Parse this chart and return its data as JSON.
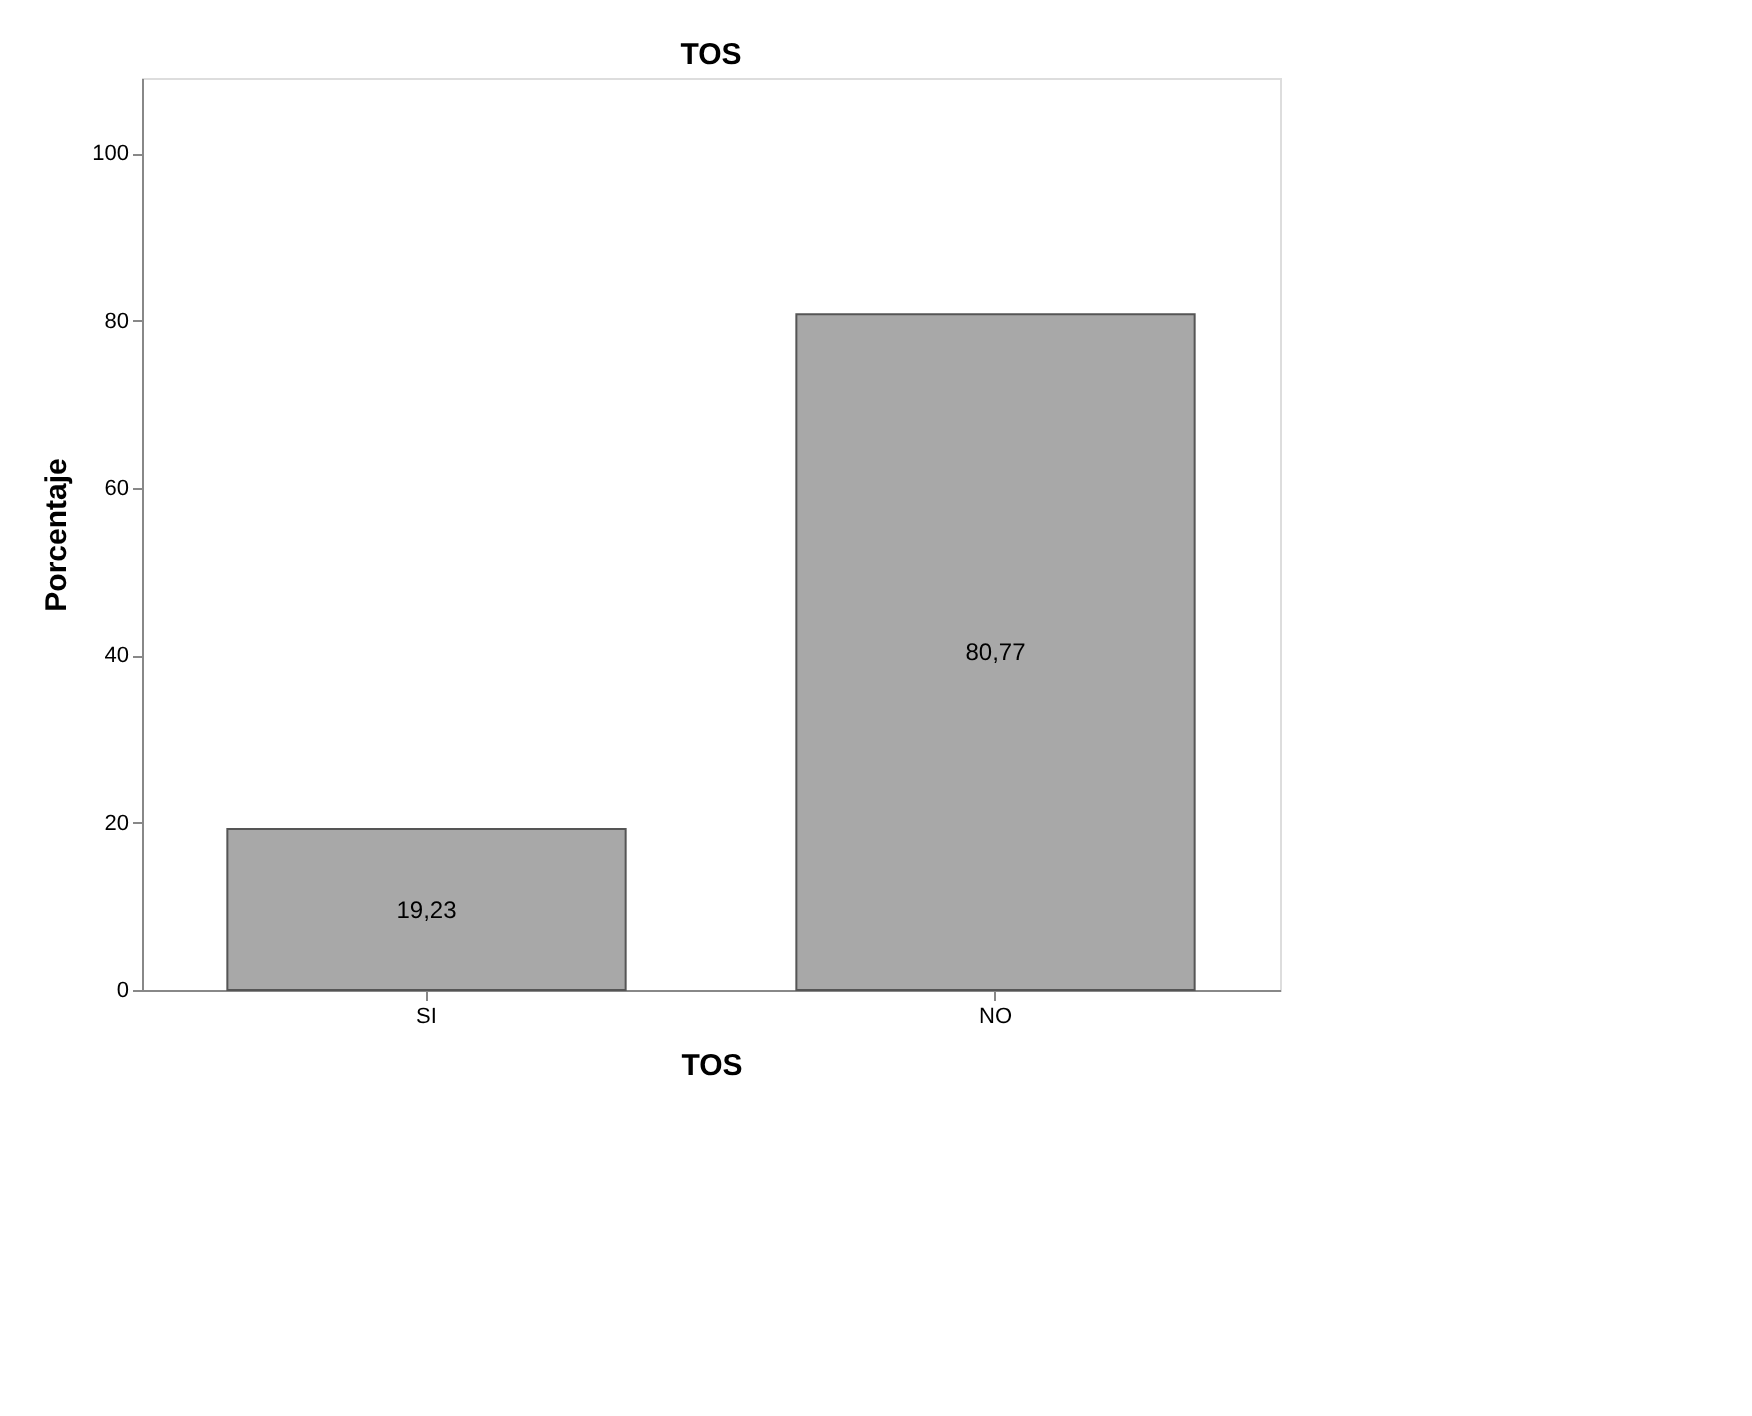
{
  "chart_data": {
    "type": "bar",
    "title": "TOS",
    "xlabel": "TOS",
    "ylabel": "Porcentaje",
    "categories": [
      "SI",
      "NO"
    ],
    "values": [
      19.23,
      80.77
    ],
    "value_labels": [
      "19,23",
      "80,77"
    ],
    "color": "#a8a8a8",
    "ylim": [
      0,
      109
    ],
    "yticks": [
      0,
      20,
      40,
      60,
      80,
      100
    ],
    "grid": false
  }
}
